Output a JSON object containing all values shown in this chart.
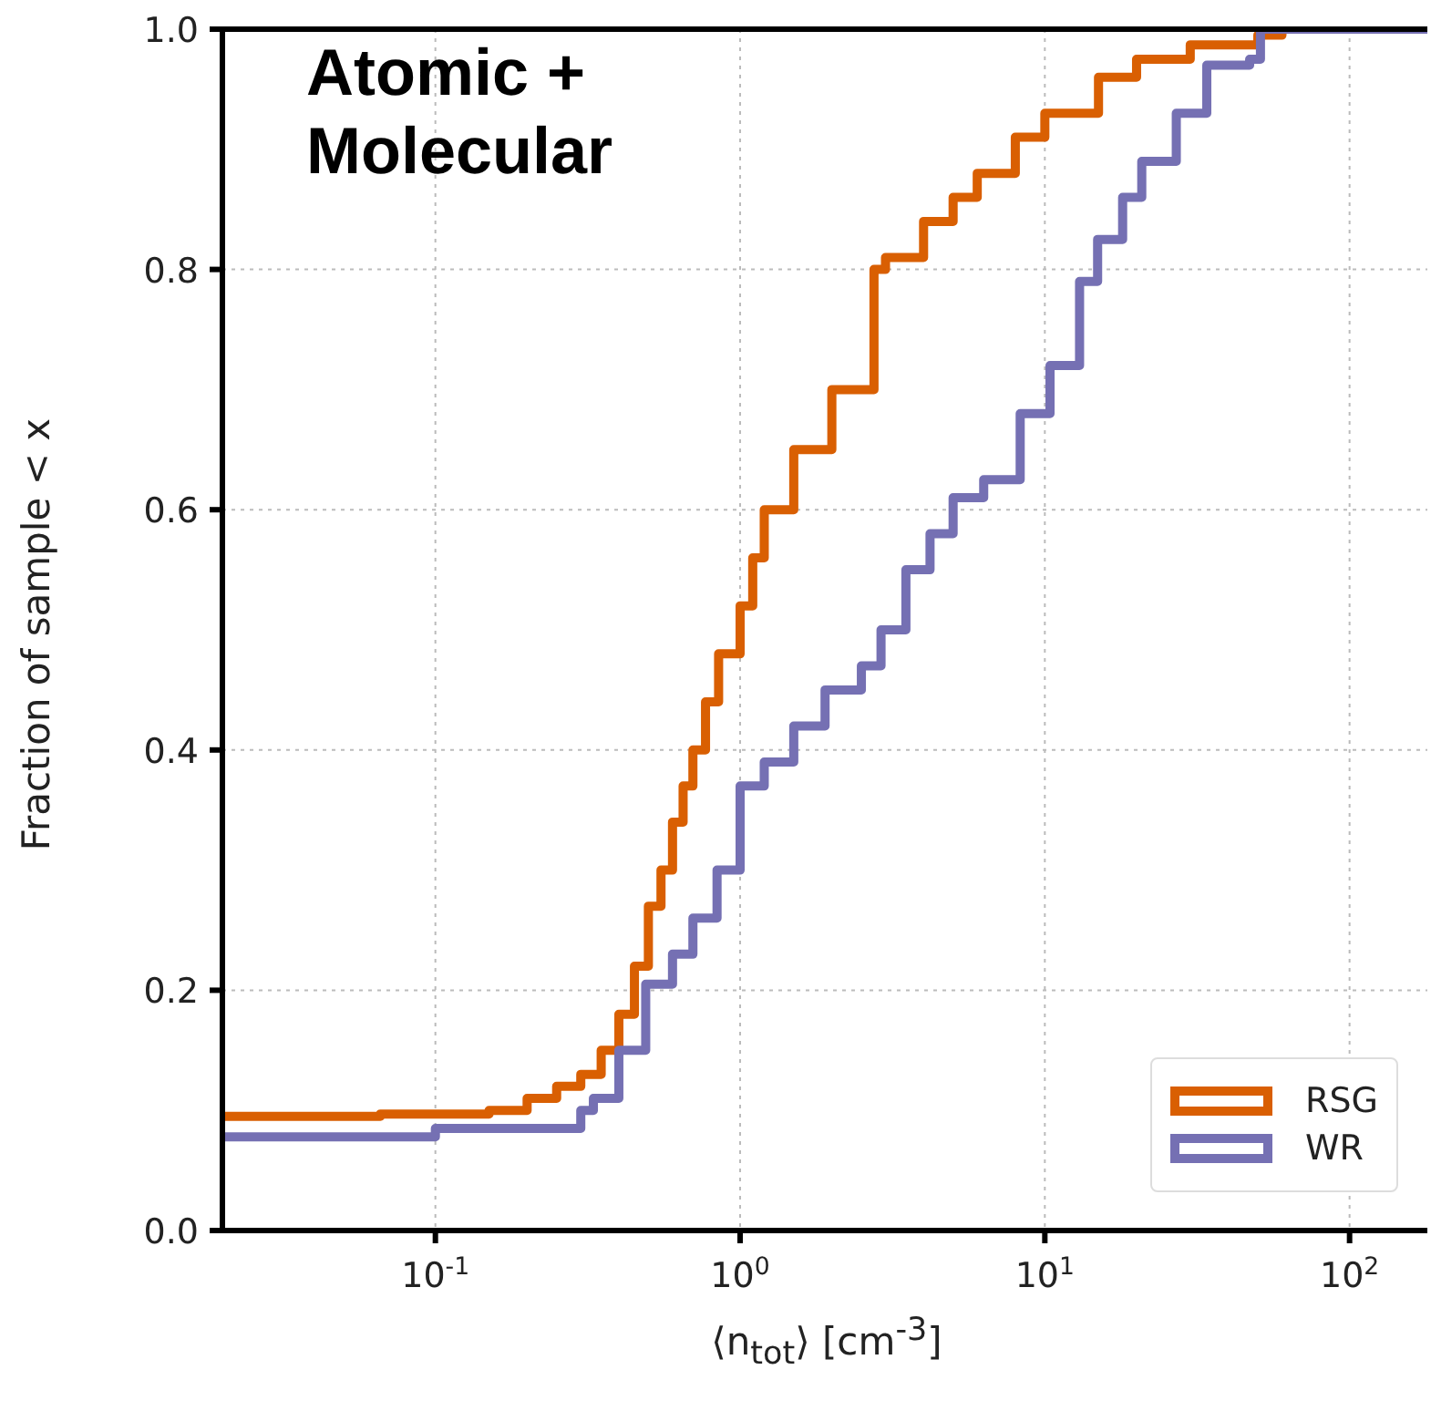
{
  "chart_data": {
    "type": "step",
    "xlabel": "⟨n$_{tot}$⟩ [cm$^{-3}$]",
    "ylabel": "Fraction of sample < x",
    "annotations": [
      "Atomic + Molecular"
    ],
    "log": "x",
    "xlim": [
      0.02,
      180
    ],
    "ylim": [
      0,
      1
    ],
    "xticks": [
      {
        "value": 0.1,
        "label": "10$^{-1}$"
      },
      {
        "value": 1,
        "label": "10$^{0}$"
      },
      {
        "value": 10,
        "label": "10$^{1}$"
      },
      {
        "value": 100,
        "label": "10$^{2}$"
      }
    ],
    "yticks": [
      {
        "value": 0,
        "label": "0.0"
      },
      0.2,
      0.4,
      0.6,
      0.8,
      {
        "value": 1,
        "label": "1.0"
      }
    ],
    "grid": true,
    "legend": "bottom right",
    "line_style": "solid",
    "marker": "none",
    "series": [
      {
        "name": "RSG",
        "color": "#d95f02",
        "x": [
          0.02,
          0.066,
          0.15,
          0.2,
          0.25,
          0.3,
          0.35,
          0.4,
          0.45,
          0.5,
          0.55,
          0.6,
          0.65,
          0.7,
          0.77,
          0.85,
          1,
          1.1,
          1.2,
          1.5,
          2,
          2.75,
          3,
          4,
          5,
          6,
          8,
          10,
          15,
          20,
          30,
          50,
          60
        ],
        "values": [
          0.095,
          0.097,
          0.1,
          0.11,
          0.12,
          0.13,
          0.15,
          0.18,
          0.22,
          0.27,
          0.3,
          0.34,
          0.37,
          0.4,
          0.44,
          0.48,
          0.52,
          0.56,
          0.6,
          0.65,
          0.7,
          0.8,
          0.81,
          0.84,
          0.86,
          0.88,
          0.91,
          0.93,
          0.96,
          0.975,
          0.987,
          0.995,
          1
        ]
      },
      {
        "name": "WR",
        "color": "#7570b3",
        "x": [
          0.02,
          0.1,
          0.3,
          0.33,
          0.4,
          0.49,
          0.6,
          0.7,
          0.84,
          1,
          1.2,
          1.5,
          1.9,
          2.5,
          2.9,
          3.5,
          4.2,
          5,
          6.3,
          8.3,
          10.4,
          13,
          14.9,
          18,
          20.8,
          27,
          34,
          47,
          51,
          180
        ],
        "values": [
          0.078,
          0.085,
          0.1,
          0.11,
          0.15,
          0.205,
          0.23,
          0.26,
          0.3,
          0.37,
          0.39,
          0.42,
          0.45,
          0.47,
          0.5,
          0.55,
          0.58,
          0.61,
          0.625,
          0.68,
          0.72,
          0.79,
          0.825,
          0.86,
          0.89,
          0.93,
          0.97,
          0.975,
          1,
          1
        ]
      }
    ]
  }
}
